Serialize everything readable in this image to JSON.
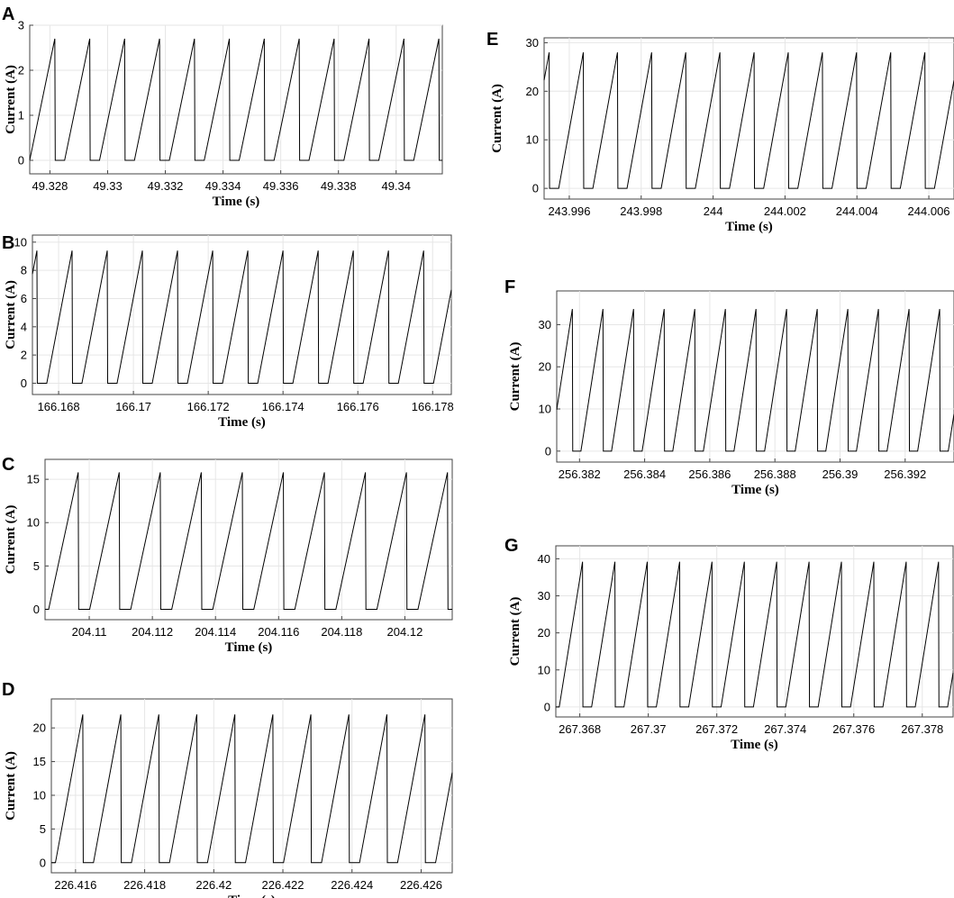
{
  "chart_data": [
    {
      "panel_label": "A",
      "type": "line",
      "xlabel": "Time (s)",
      "ylabel": "Current (A)",
      "xlim": [
        49.3273,
        49.3416
      ],
      "ylim": [
        -0.3,
        3.0
      ],
      "xticks": [
        49.328,
        49.33,
        49.332,
        49.334,
        49.336,
        49.338,
        49.34
      ],
      "xtick_labels": [
        "49.328",
        "49.33",
        "49.332",
        "49.334",
        "49.336",
        "49.338",
        "49.34"
      ],
      "yticks": [
        0,
        1,
        2,
        3
      ],
      "ytick_labels": [
        "0",
        "1",
        "2",
        "3"
      ],
      "grid": true,
      "series": [
        {
          "waveform": "sawtooth",
          "peak": 2.7,
          "period": 0.00121,
          "first_peak_time": 49.32817,
          "rise_fraction": 0.72
        }
      ]
    },
    {
      "panel_label": "B",
      "type": "line",
      "xlabel": "Time (s)",
      "ylabel": "Current (A)",
      "xlim": [
        166.1673,
        166.1785
      ],
      "ylim": [
        -0.8,
        10.5
      ],
      "xticks": [
        166.168,
        166.17,
        166.172,
        166.174,
        166.176,
        166.178
      ],
      "xtick_labels": [
        "166.168",
        "166.17",
        "166.172",
        "166.174",
        "166.176",
        "166.178"
      ],
      "yticks": [
        0,
        2,
        4,
        6,
        8,
        10
      ],
      "ytick_labels": [
        "0",
        "2",
        "4",
        "6",
        "8",
        "10"
      ],
      "grid": true,
      "series": [
        {
          "waveform": "sawtooth",
          "peak": 9.4,
          "period": 0.00094,
          "first_peak_time": 166.16742,
          "rise_fraction": 0.72
        }
      ]
    },
    {
      "panel_label": "C",
      "type": "line",
      "xlabel": "Time (s)",
      "ylabel": "Current (A)",
      "xlim": [
        204.1086,
        204.1215
      ],
      "ylim": [
        -1.2,
        17.3
      ],
      "xticks": [
        204.11,
        204.112,
        204.114,
        204.116,
        204.118,
        204.12
      ],
      "xtick_labels": [
        "204.11",
        "204.112",
        "204.114",
        "204.116",
        "204.118",
        "204.12"
      ],
      "yticks": [
        0,
        5,
        10,
        15
      ],
      "ytick_labels": [
        "0",
        "5",
        "10",
        "15"
      ],
      "grid": true,
      "series": [
        {
          "waveform": "sawtooth",
          "peak": 15.8,
          "period": 0.0013,
          "first_peak_time": 204.10965,
          "rise_fraction": 0.72
        }
      ]
    },
    {
      "panel_label": "D",
      "type": "line",
      "xlabel": "Time (s)",
      "ylabel": "Current (A)",
      "xlim": [
        226.4153,
        226.4269
      ],
      "ylim": [
        -1.5,
        24.3
      ],
      "xticks": [
        226.416,
        226.418,
        226.42,
        226.422,
        226.424,
        226.426
      ],
      "xtick_labels": [
        "226.416",
        "226.418",
        "226.42",
        "226.422",
        "226.424",
        "226.426"
      ],
      "yticks": [
        0,
        5,
        10,
        15,
        20
      ],
      "ytick_labels": [
        "0",
        "5",
        "10",
        "15",
        "20"
      ],
      "grid": true,
      "series": [
        {
          "waveform": "sawtooth",
          "peak": 22.0,
          "period": 0.0011,
          "first_peak_time": 226.41621,
          "rise_fraction": 0.72
        }
      ]
    },
    {
      "panel_label": "E",
      "type": "line",
      "xlabel": "Time (s)",
      "ylabel": "Current (A)",
      "xlim": [
        243.9953,
        244.0067
      ],
      "ylim": [
        -2.2,
        31.0
      ],
      "xticks": [
        243.996,
        243.998,
        244,
        244.002,
        244.004,
        244.006
      ],
      "xtick_labels": [
        "243.996",
        "243.998",
        "244",
        "244.002",
        "244.004",
        "244.006"
      ],
      "yticks": [
        0,
        10,
        20,
        30
      ],
      "ytick_labels": [
        "0",
        "10",
        "20",
        "30"
      ],
      "grid": true,
      "series": [
        {
          "waveform": "sawtooth",
          "peak": 28.0,
          "period": 0.00095,
          "first_peak_time": 243.99544,
          "rise_fraction": 0.72
        }
      ]
    },
    {
      "panel_label": "F",
      "type": "line",
      "xlabel": "Time (s)",
      "ylabel": "Current (A)",
      "xlim": [
        256.3813,
        256.3935
      ],
      "ylim": [
        -2.6,
        38.0
      ],
      "xticks": [
        256.382,
        256.384,
        256.386,
        256.388,
        256.39,
        256.392
      ],
      "xtick_labels": [
        "256.382",
        "256.384",
        "256.386",
        "256.388",
        "256.39",
        "256.392"
      ],
      "yticks": [
        0,
        10,
        20,
        30
      ],
      "ytick_labels": [
        "0",
        "10",
        "20",
        "30"
      ],
      "grid": true,
      "series": [
        {
          "waveform": "sawtooth",
          "peak": 33.7,
          "period": 0.00094,
          "first_peak_time": 256.38178,
          "rise_fraction": 0.72
        }
      ]
    },
    {
      "panel_label": "G",
      "type": "line",
      "xlabel": "Time (s)",
      "ylabel": "Current (A)",
      "xlim": [
        267.3673,
        267.3789
      ],
      "ylim": [
        -2.7,
        43.5
      ],
      "xticks": [
        267.368,
        267.37,
        267.372,
        267.374,
        267.376,
        267.378
      ],
      "xtick_labels": [
        "267.368",
        "267.37",
        "267.372",
        "267.374",
        "267.376",
        "267.378"
      ],
      "yticks": [
        0,
        10,
        20,
        30,
        40
      ],
      "ytick_labels": [
        "0",
        "10",
        "20",
        "30",
        "40"
      ],
      "grid": true,
      "series": [
        {
          "waveform": "sawtooth",
          "peak": 39.2,
          "period": 0.000945,
          "first_peak_time": 267.36808,
          "rise_fraction": 0.72
        }
      ]
    }
  ]
}
